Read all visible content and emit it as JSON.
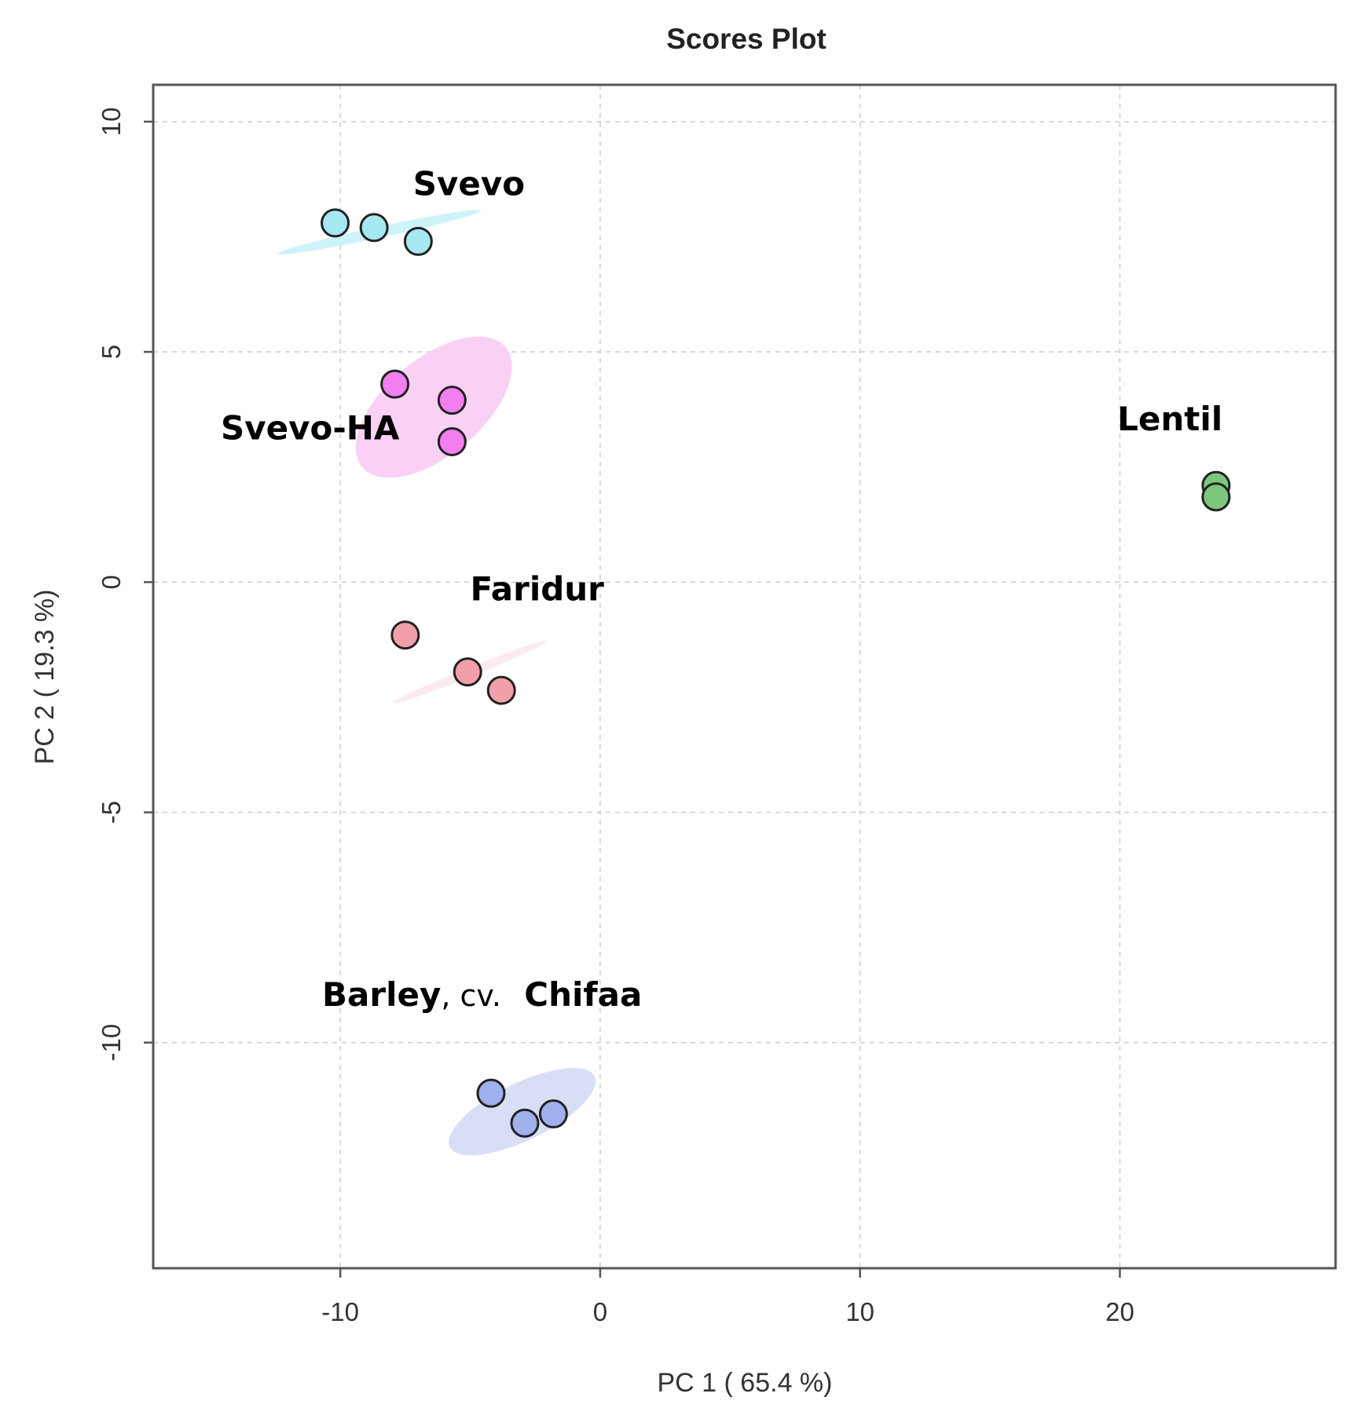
{
  "chart_data": {
    "type": "scatter",
    "title": "Scores Plot",
    "xlabel": "PC 1 ( 65.4 %)",
    "ylabel": "PC 2 ( 19.3 %)",
    "xlim": [
      -17.2,
      28.3
    ],
    "ylim": [
      -14.9,
      10.8
    ],
    "xticks": [
      -10,
      0,
      10,
      20
    ],
    "yticks": [
      -10,
      -5,
      0,
      5,
      10
    ],
    "xtick_labels": [
      "-10",
      "0",
      "10",
      "20"
    ],
    "ytick_labels": [
      "-10",
      "-5",
      "0",
      "5",
      "10"
    ],
    "grid": true,
    "legend": "none",
    "series": [
      {
        "name": "Svevo",
        "color": "#a6e8f2",
        "ellipse_color": "#c6f2f8",
        "points": [
          [
            -10.2,
            7.8
          ],
          [
            -8.7,
            7.7
          ],
          [
            -7.0,
            7.4
          ]
        ],
        "ellipse": {
          "cx": -8.5,
          "cy": 7.6,
          "rx": 4.0,
          "ry": 0.12,
          "angle_deg": -12
        },
        "label": {
          "main": "Svevo",
          "extra": "",
          "suffix": "",
          "x": -7.2,
          "y": 8.4
        }
      },
      {
        "name": "Svevo-HA",
        "color": "#f27ef0",
        "ellipse_color": "#f9ccf4",
        "points": [
          [
            -7.9,
            4.3
          ],
          [
            -5.7,
            3.95
          ],
          [
            -5.7,
            3.05
          ]
        ],
        "ellipse": {
          "cx": -6.4,
          "cy": 3.8,
          "rx": 3.6,
          "ry": 1.05,
          "angle_deg": -40
        },
        "label": {
          "main": "Svevo-HA",
          "extra": "",
          "suffix": "",
          "x": -14.6,
          "y": 3.1
        }
      },
      {
        "name": "Faridur",
        "color": "#f1a0aa",
        "ellipse_color": "#fbe9ec",
        "points": [
          [
            -7.5,
            -1.15
          ],
          [
            -5.1,
            -1.95
          ],
          [
            -3.8,
            -2.35
          ]
        ],
        "ellipse": {
          "cx": -5.0,
          "cy": -1.95,
          "rx": 3.2,
          "ry": 0.1,
          "angle_deg": -22
        },
        "label": {
          "main": "Faridur",
          "extra": "",
          "suffix": "",
          "x": -5.0,
          "y": -0.4
        }
      },
      {
        "name": "Lentil",
        "color": "#7cc87c",
        "ellipse_color": "#d6efd6",
        "points": [
          [
            23.7,
            2.1
          ],
          [
            23.7,
            1.85
          ]
        ],
        "ellipse": null,
        "label": {
          "main": "Lentil",
          "extra": "",
          "suffix": "",
          "x": 19.9,
          "y": 3.3
        }
      },
      {
        "name": "Barley, cv.  Chifaa",
        "color": "#9fb0ec",
        "ellipse_color": "#d4daf4",
        "points": [
          [
            -4.2,
            -11.1
          ],
          [
            -2.9,
            -11.75
          ],
          [
            -1.8,
            -11.55
          ]
        ],
        "ellipse": {
          "cx": -3.0,
          "cy": -11.5,
          "rx": 3.1,
          "ry": 0.62,
          "angle_deg": -26
        },
        "label": {
          "main": "Barley",
          "extra": ", cv.",
          "suffix": "  Chifaa",
          "x": -10.7,
          "y": -9.2
        }
      }
    ]
  }
}
